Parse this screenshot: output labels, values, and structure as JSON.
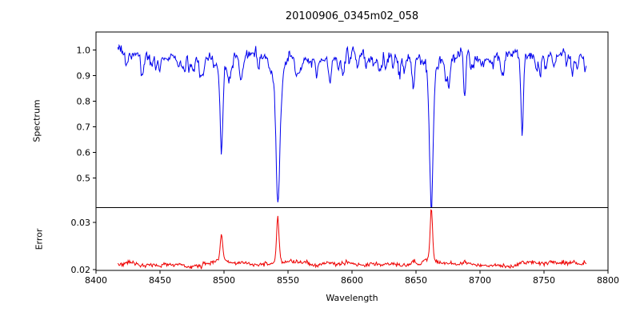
{
  "chart_data": {
    "type": "line",
    "title": "20100906_0345m02_058",
    "xlabel": "Wavelength",
    "xlim": [
      8400,
      8800
    ],
    "xticks": [
      {
        "value": 8400,
        "label": "8400"
      },
      {
        "value": 8450,
        "label": "8450"
      },
      {
        "value": 8500,
        "label": "8500"
      },
      {
        "value": 8550,
        "label": "8550"
      },
      {
        "value": 8600,
        "label": "8600"
      },
      {
        "value": 8650,
        "label": "8650"
      },
      {
        "value": 8700,
        "label": "8700"
      },
      {
        "value": 8750,
        "label": "8750"
      },
      {
        "value": 8800,
        "label": "8800"
      }
    ],
    "grid": false,
    "legend": "none",
    "data_wavelength_range": [
      8417,
      8783
    ],
    "panels": [
      {
        "name": "spectrum",
        "ylabel": "Spectrum",
        "ylim": [
          0.385,
          1.07
        ],
        "yticks": [
          {
            "value": 1.0,
            "label": "1.0"
          },
          {
            "value": 0.9,
            "label": "0.9"
          },
          {
            "value": 0.8,
            "label": "0.8"
          },
          {
            "value": 0.7,
            "label": "0.7"
          },
          {
            "value": 0.6,
            "label": "0.6"
          },
          {
            "value": 0.5,
            "label": "0.5"
          }
        ],
        "color": "#0000ee",
        "continuum_level": 0.978,
        "noise_sigma": 0.0085,
        "major_absorption_lines": [
          {
            "wavelength": 8498,
            "min_flux": 0.59,
            "core_sigma": 1.0,
            "wing_gamma": 1.7
          },
          {
            "wavelength": 8542,
            "min_flux": 0.415,
            "core_sigma": 1.3,
            "wing_gamma": 2.6
          },
          {
            "wavelength": 8662,
            "min_flux": 0.435,
            "core_sigma": 1.3,
            "wing_gamma": 2.4
          }
        ],
        "minor_absorption_lines": [
          {
            "wavelength": 8436,
            "depth": 0.06,
            "sigma": 0.8
          },
          {
            "wavelength": 8447,
            "depth": 0.05,
            "sigma": 0.8
          },
          {
            "wavelength": 8468,
            "depth": 0.055,
            "sigma": 0.9
          },
          {
            "wavelength": 8482,
            "depth": 0.045,
            "sigma": 0.8
          },
          {
            "wavelength": 8514,
            "depth": 0.08,
            "sigma": 0.9
          },
          {
            "wavelength": 8527,
            "depth": 0.05,
            "sigma": 0.8
          },
          {
            "wavelength": 8556,
            "depth": 0.06,
            "sigma": 0.8
          },
          {
            "wavelength": 8583,
            "depth": 0.07,
            "sigma": 0.8
          },
          {
            "wavelength": 8598,
            "depth": 0.06,
            "sigma": 0.8
          },
          {
            "wavelength": 8611,
            "depth": 0.05,
            "sigma": 0.8
          },
          {
            "wavelength": 8621,
            "depth": 0.06,
            "sigma": 0.8
          },
          {
            "wavelength": 8648,
            "depth": 0.11,
            "sigma": 0.9
          },
          {
            "wavelength": 8674,
            "depth": 0.08,
            "sigma": 0.8
          },
          {
            "wavelength": 8688,
            "depth": 0.18,
            "sigma": 0.9
          },
          {
            "wavelength": 8710,
            "depth": 0.05,
            "sigma": 0.8
          },
          {
            "wavelength": 8718,
            "depth": 0.06,
            "sigma": 0.8
          },
          {
            "wavelength": 8733,
            "depth": 0.155,
            "sigma": 0.85
          },
          {
            "wavelength": 8747,
            "depth": 0.09,
            "sigma": 0.8
          },
          {
            "wavelength": 8772,
            "depth": 0.06,
            "sigma": 0.8
          }
        ]
      },
      {
        "name": "error",
        "ylabel": "Error",
        "ylim": [
          0.0198,
          0.0331
        ],
        "yticks": [
          {
            "value": 0.03,
            "label": "0.03"
          },
          {
            "value": 0.02,
            "label": "0.02"
          }
        ],
        "color": "#ee0000",
        "baseline_level": 0.0212,
        "noise_sigma": 0.0002,
        "peaks": [
          {
            "wavelength": 8498,
            "peak_value": 0.027
          },
          {
            "wavelength": 8542,
            "peak_value": 0.0315
          },
          {
            "wavelength": 8662,
            "peak_value": 0.0325
          }
        ]
      }
    ]
  }
}
